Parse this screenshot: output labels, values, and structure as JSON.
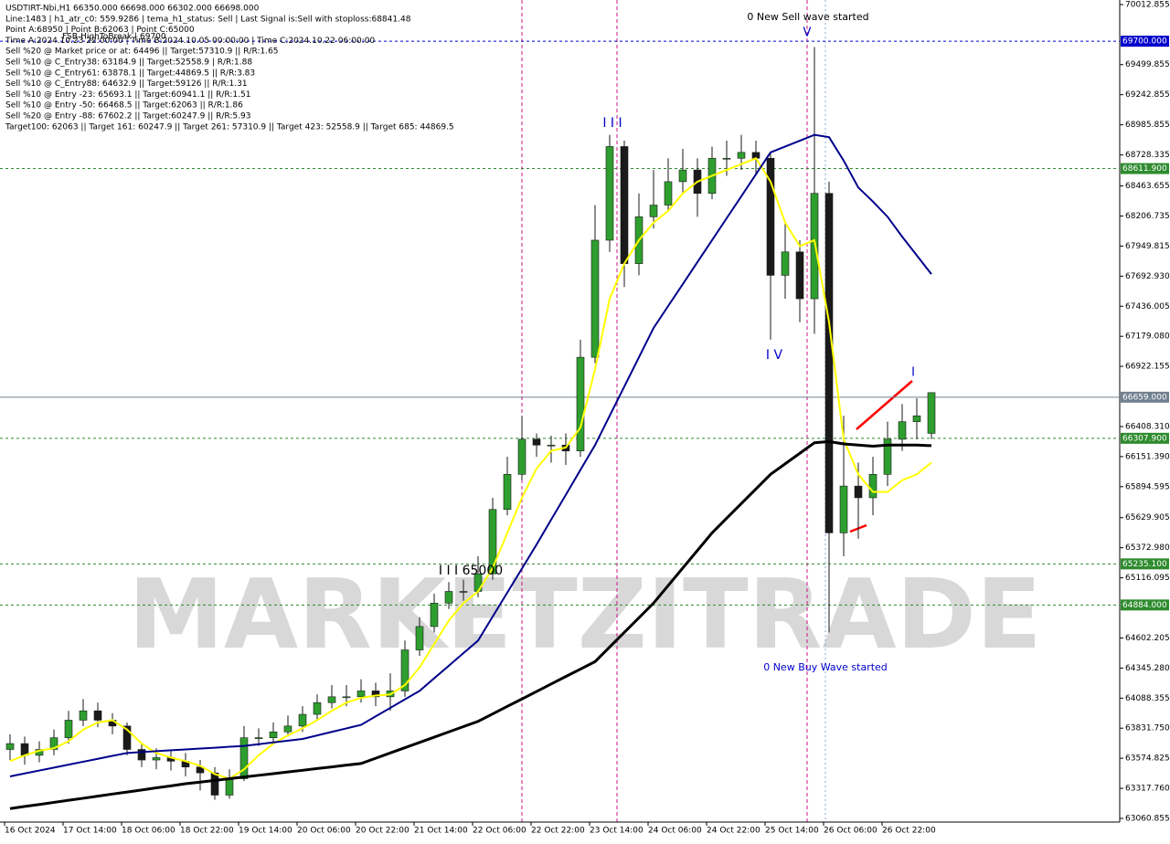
{
  "chart_data": {
    "type": "candlestick",
    "info_lines": [
      "USDTIRT-Nbi,H1  66350.000 66698.000 66302.000 66698.000",
      "Line:1483 | h1_atr_c0: 559.9286 | tema_h1_status: Sell | Last Signal is:Sell with stoploss:68841.48",
      "Point A:68950 | Point B:62063 | Point C:65000",
      "Time A:2024.10.23 22:00:00 | Time B:2024.10.05 00:00:00 | Time C:2024.10.22 06:00:00",
      "Sell %20 @ Market price or at: 64496 || Target:57310.9 || R/R:1.65",
      "Sell %10 @ C_Entry38: 63184.9 || Target:52558.9 | R/R:1.88",
      "Sell %10 @ C_Entry61: 63878.1 || Target:44869.5 || R/R:3.83",
      "Sell %10 @ C_Entry88: 64632.9 || Target:59126 || R/R:1.31",
      "Sell %10 @ Entry -23: 65693.1 || Target:60941.1 || R/R:1.51",
      "Sell %10 @ Entry -50: 66468.5 || Target:62063 || R/R:1.86",
      "Sell %20 @ Entry -88: 67602.2 || Target:60247.9 || R/R:5.93",
      "Target100: 62063 || Target 161: 60247.9 || Target 261: 57310.9 || Target 423: 52558.9 || Target 685: 44869.5"
    ],
    "annotations": [
      "FSB-HighToBreak | 69700",
      "0 New Sell wave started",
      "V",
      "I I I",
      "I V",
      "I",
      "I I I 65000",
      "0 New Buy Wave started"
    ],
    "watermark": "MARKETZITRADE",
    "categories": [
      "16 Oct 2024",
      null,
      null,
      null,
      "17 Oct 14:00",
      null,
      null,
      null,
      "18 Oct 06:00",
      null,
      null,
      null,
      "18 Oct 22:00",
      null,
      null,
      null,
      "19 Oct 14:00",
      null,
      null,
      null,
      "20 Oct 06:00",
      null,
      null,
      null,
      "20 Oct 22:00",
      null,
      null,
      null,
      "21 Oct 14:00",
      null,
      null,
      null,
      "22 Oct 06:00",
      null,
      null,
      null,
      "22 Oct 22:00",
      null,
      null,
      null,
      "23 Oct 14:00",
      null,
      null,
      null,
      "24 Oct 06:00",
      null,
      null,
      null,
      "24 Oct 22:00",
      null,
      null,
      null,
      "25 Oct 14:00",
      null,
      null,
      null,
      "26 Oct 06:00",
      null,
      null,
      null,
      "26 Oct 22:00",
      null,
      null,
      null
    ],
    "open": [
      63650,
      63700,
      63600,
      63650,
      63750,
      63900,
      63980,
      63900,
      63850,
      63650,
      63560,
      63580,
      63550,
      63500,
      63450,
      63260,
      63400,
      63750,
      63750,
      63800,
      63850,
      63950,
      64050,
      64100,
      64100,
      64150,
      64100,
      64150,
      64500,
      64700,
      64900,
      65000,
      65000,
      65150,
      65700,
      66000,
      66300,
      66250,
      66250,
      66200,
      67000,
      68000,
      68800,
      67800,
      68200,
      68300,
      68500,
      68600,
      68400,
      68700,
      68700,
      68750,
      68700,
      67700,
      67900,
      67500,
      68400,
      65500,
      65900,
      65800,
      66000,
      66300,
      66450,
      66350
    ],
    "high": [
      63780,
      63760,
      63720,
      63820,
      63980,
      64080,
      64050,
      63960,
      63880,
      63700,
      63660,
      63640,
      63620,
      63560,
      63500,
      63480,
      63850,
      63830,
      63880,
      63940,
      64020,
      64120,
      64200,
      64200,
      64250,
      64220,
      64300,
      64580,
      64780,
      64980,
      65080,
      65100,
      65300,
      65800,
      66150,
      66500,
      66350,
      66330,
      66350,
      67150,
      68300,
      68900,
      68850,
      68400,
      68600,
      68700,
      68780,
      68700,
      68800,
      68850,
      68900,
      68850,
      68750,
      68150,
      68000,
      69650,
      68500,
      66500,
      66100,
      66150,
      66450,
      66600,
      66650,
      66698
    ],
    "low": [
      63560,
      63520,
      63540,
      63600,
      63700,
      63850,
      63840,
      63780,
      63600,
      63500,
      63480,
      63470,
      63420,
      63300,
      63220,
      63230,
      63380,
      63680,
      63700,
      63760,
      63800,
      63900,
      64000,
      64020,
      64050,
      64020,
      63980,
      64100,
      64450,
      64650,
      64850,
      64920,
      64950,
      65100,
      65650,
      65950,
      66150,
      66100,
      66080,
      66150,
      66950,
      67900,
      67600,
      67700,
      68100,
      68250,
      68400,
      68200,
      68350,
      68550,
      68600,
      68550,
      67150,
      67500,
      67300,
      67200,
      64650,
      65300,
      65450,
      65650,
      65900,
      66200,
      66300,
      66302
    ],
    "close": [
      63700,
      63600,
      63650,
      63750,
      63900,
      63980,
      63900,
      63850,
      63650,
      63560,
      63580,
      63550,
      63500,
      63450,
      63260,
      63400,
      63750,
      63750,
      63800,
      63850,
      63950,
      64050,
      64100,
      64100,
      64150,
      64100,
      64150,
      64500,
      64700,
      64900,
      65000,
      65000,
      65150,
      65700,
      66000,
      66300,
      66250,
      66250,
      66200,
      67000,
      68000,
      68800,
      67800,
      68200,
      68300,
      68500,
      68600,
      68400,
      68700,
      68700,
      68750,
      68700,
      67700,
      67900,
      67500,
      68400,
      65500,
      65900,
      65800,
      66000,
      66300,
      66450,
      66500,
      66698
    ],
    "up_color": "#2e9e2e",
    "down_color": "#1a1a1a",
    "series": [
      {
        "color": "#ffff00",
        "values": [
          63550,
          63600,
          63640,
          63660,
          63720,
          63820,
          63880,
          63900,
          63820,
          63700,
          63620,
          63580,
          63550,
          63510,
          63440,
          63400,
          63480,
          63600,
          63700,
          63770,
          63830,
          63900,
          63980,
          64050,
          64090,
          64110,
          64120,
          64200,
          64350,
          64550,
          64750,
          64900,
          65000,
          65200,
          65500,
          65800,
          66050,
          66200,
          66230,
          66400,
          66900,
          67500,
          67800,
          68000,
          68150,
          68250,
          68400,
          68500,
          68550,
          68600,
          68650,
          68700,
          68500,
          68150,
          67950,
          68000,
          67300,
          66300,
          66000,
          65850,
          65850,
          65950,
          66000,
          66100
        ]
      },
      {
        "color": "#00008b",
        "values": [
          63420,
          63445,
          63470,
          63495,
          63520,
          63545,
          63570,
          63595,
          63620,
          63628,
          63635,
          63643,
          63650,
          63658,
          63665,
          63673,
          63680,
          63695,
          63710,
          63725,
          63740,
          63770,
          63800,
          63830,
          63860,
          63933,
          64005,
          64078,
          64150,
          64258,
          64365,
          64473,
          64580,
          64785,
          64990,
          65195,
          65400,
          65613,
          65825,
          66038,
          66250,
          66500,
          66750,
          67000,
          67250,
          67438,
          67625,
          67813,
          68000,
          68188,
          68375,
          68563,
          68750,
          68800,
          68850,
          68900,
          68880,
          68680,
          68450,
          68330,
          68200,
          68030,
          67870,
          67710
        ]
      },
      {
        "color": "#000000",
        "values": [
          63145,
          63163,
          63180,
          63198,
          63216,
          63233,
          63251,
          63269,
          63286,
          63304,
          63322,
          63339,
          63357,
          63371,
          63386,
          63400,
          63415,
          63429,
          63443,
          63458,
          63472,
          63487,
          63501,
          63516,
          63530,
          63575,
          63620,
          63665,
          63710,
          63755,
          63800,
          63845,
          63890,
          63954,
          64018,
          64081,
          64145,
          64209,
          64273,
          64336,
          64400,
          64525,
          64650,
          64775,
          64900,
          65050,
          65200,
          65350,
          65500,
          65625,
          65750,
          65875,
          66000,
          66090,
          66180,
          66270,
          66280,
          66260,
          66250,
          66240,
          66250,
          66250,
          66250,
          66245
        ]
      }
    ],
    "levels": [
      {
        "value": 69700,
        "label": "69700.000",
        "color": "#0000cd"
      },
      {
        "value": 68611.9,
        "label": "68611.900",
        "color": "#2e8b2e"
      },
      {
        "value": 66659,
        "label": "66659.000",
        "color": "#708090"
      },
      {
        "value": 66307.9,
        "label": "66307.900",
        "color": "#2e8b2e"
      },
      {
        "value": 65235.1,
        "label": "65235.100",
        "color": "#2e8b2e"
      },
      {
        "value": 64884,
        "label": "64884.000",
        "color": "#2e8b2e"
      }
    ],
    "ylim": [
      63060.855,
      70012.855
    ],
    "yticks": [
      70012.855,
      69499.855,
      69242.855,
      68985.855,
      68728.335,
      68463.655,
      68206.735,
      67949.815,
      {
        "value": 67692.93,
        "label": "67692.930"
      },
      67436.005,
      {
        "value": 67179.08,
        "label": "67179.080"
      },
      66922.155,
      {
        "value": 66408.31,
        "label": "66408.310"
      },
      {
        "value": 66151.39,
        "label": "66151.390"
      },
      65894.595,
      65629.905,
      {
        "value": 65372.98,
        "label": "65372.980"
      },
      65116.095,
      64602.205,
      {
        "value": 64345.28,
        "label": "64345.280"
      },
      64088.355,
      {
        "value": 63831.75,
        "label": "63831.750"
      },
      63574.825,
      {
        "value": 63317.76,
        "label": "63317.760"
      },
      63060.855
    ]
  }
}
